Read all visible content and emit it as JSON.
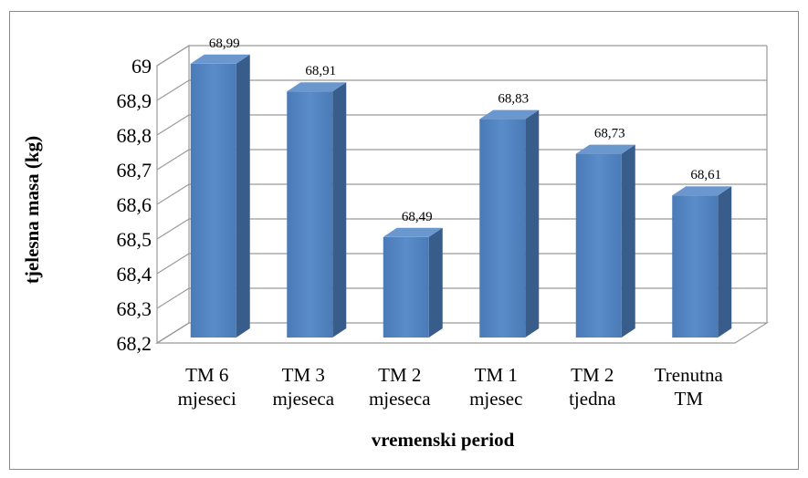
{
  "chart_data": {
    "type": "bar",
    "categories": [
      [
        "TM 6",
        "mjeseci"
      ],
      [
        "TM 3",
        "mjeseca"
      ],
      [
        "TM 2",
        "mjeseca"
      ],
      [
        "TM 1",
        "mjesec"
      ],
      [
        "TM 2",
        "tjedna"
      ],
      [
        "Trenutna",
        "TM"
      ]
    ],
    "values": [
      68.99,
      68.91,
      68.49,
      68.83,
      68.73,
      68.61
    ],
    "value_labels": [
      "68,99",
      "68,91",
      "68,49",
      "68,83",
      "68,73",
      "68,61"
    ],
    "y_ticks": [
      "68,2",
      "68,3",
      "68,4",
      "68,5",
      "68,6",
      "68,7",
      "68,8",
      "68,9",
      "69"
    ],
    "ylim": [
      68.2,
      69.0
    ],
    "xlabel": "vremenski period",
    "ylabel": "tjelesna masa (kg)",
    "grid": true,
    "style": "3d-column",
    "colors": {
      "bar_front": "#4f81bd",
      "bar_side": "#385d8a",
      "bar_top": "#6b97cf",
      "grid": "#9a9a9a"
    }
  }
}
